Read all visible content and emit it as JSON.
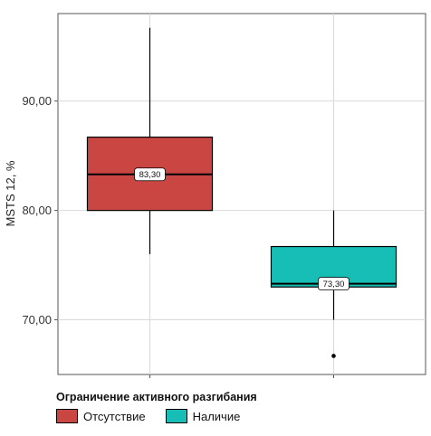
{
  "chart_data": {
    "type": "boxplot",
    "title": "",
    "xlabel": "",
    "ylabel": "MSTS 12, %",
    "ylim": [
      65.0,
      98.0
    ],
    "yticks": [
      70,
      80,
      90
    ],
    "ytick_labels": [
      "70,00",
      "80,00",
      "90,00"
    ],
    "grid": true,
    "legend_position": "bottom",
    "legend_title": "Ограничение активного разгибания",
    "series": [
      {
        "name": "Отсутствие",
        "color": "#C94643",
        "min": 76.0,
        "q1": 80.0,
        "median": 83.3,
        "q3": 86.7,
        "max": 96.7,
        "outliers": [],
        "median_label": "83,30"
      },
      {
        "name": "Наличие",
        "color": "#17BEB5",
        "min": 70.0,
        "q1": 73.0,
        "median": 73.3,
        "q3": 76.7,
        "max": 80.0,
        "outliers": [
          66.7
        ],
        "median_label": "73,30"
      }
    ]
  }
}
